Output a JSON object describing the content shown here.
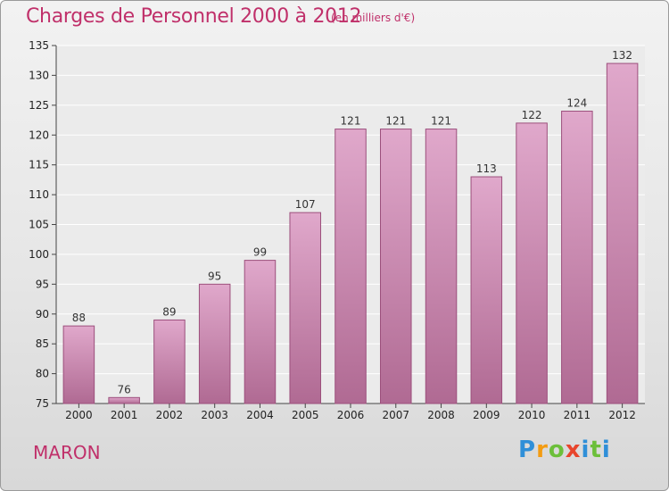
{
  "header": {
    "title": "Charges de Personnel 2000 à 2012",
    "subtitle": "(en milliers d'€)"
  },
  "footer": {
    "commune": "MARON",
    "logo_text": "Proxiti"
  },
  "colors": {
    "title": "#c0306a",
    "bar_top": "#e0a8cb",
    "bar_bottom": "#b06a93",
    "bar_edge": "#9c4f7c"
  },
  "chart_data": {
    "type": "bar",
    "categories": [
      "2000",
      "2001",
      "2002",
      "2003",
      "2004",
      "2005",
      "2006",
      "2007",
      "2008",
      "2009",
      "2010",
      "2011",
      "2012"
    ],
    "values": [
      88,
      76,
      89,
      95,
      99,
      107,
      121,
      121,
      121,
      113,
      122,
      124,
      132
    ],
    "title": "Charges de Personnel 2000 à 2012",
    "xlabel": "",
    "ylabel": "",
    "ylim": [
      75,
      135
    ],
    "yticks": [
      75,
      80,
      85,
      90,
      95,
      100,
      105,
      110,
      115,
      120,
      125,
      130,
      135
    ],
    "grid": true,
    "legend": "none"
  }
}
